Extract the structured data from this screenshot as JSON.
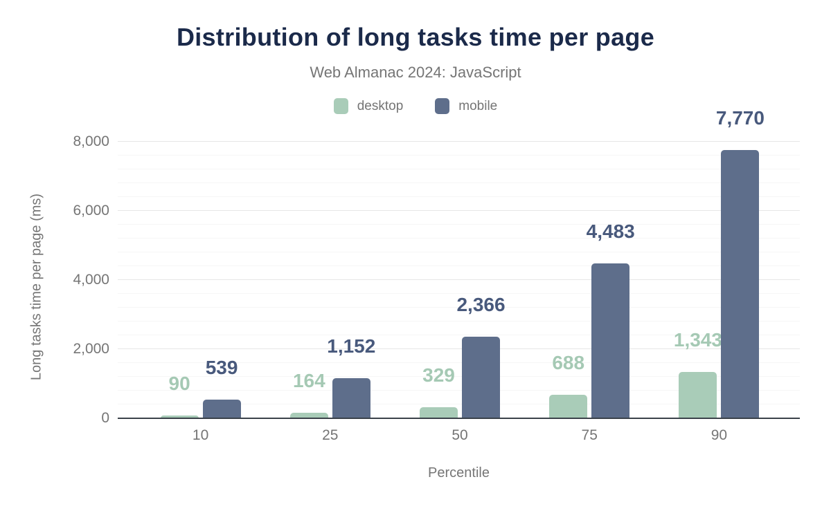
{
  "chart_data": {
    "type": "bar",
    "title": "Distribution of long tasks time per page",
    "subtitle": "Web Almanac 2024: JavaScript",
    "xlabel": "Percentile",
    "ylabel": "Long tasks time per page (ms)",
    "categories": [
      "10",
      "25",
      "50",
      "75",
      "90"
    ],
    "series": [
      {
        "name": "desktop",
        "color": "#a9ccb8",
        "label_color": "#a5c9b4",
        "values": [
          90,
          164,
          329,
          688,
          1343
        ],
        "value_labels": [
          "90",
          "164",
          "329",
          "688",
          "1,343"
        ]
      },
      {
        "name": "mobile",
        "color": "#5e6e8b",
        "label_color": "#48597c",
        "values": [
          539,
          1152,
          2366,
          4483,
          7770
        ],
        "value_labels": [
          "539",
          "1,152",
          "2,366",
          "4,483",
          "7,770"
        ]
      }
    ],
    "ylim": [
      0,
      8000
    ],
    "yticks": [
      0,
      2000,
      4000,
      6000,
      8000
    ],
    "ytick_labels": [
      "0",
      "2,000",
      "4,000",
      "6,000",
      "8,000"
    ],
    "minor_grid_step": 400,
    "grid": true,
    "legend_position": "top",
    "theme": {
      "title_color": "#1b2a4a",
      "subtitle_color": "#757575",
      "axis_text_color": "#757575",
      "major_grid_color": "#e6e6e6",
      "minor_grid_color": "#f6f6f6",
      "baseline_color": "#3a4149",
      "background": "#ffffff"
    }
  }
}
